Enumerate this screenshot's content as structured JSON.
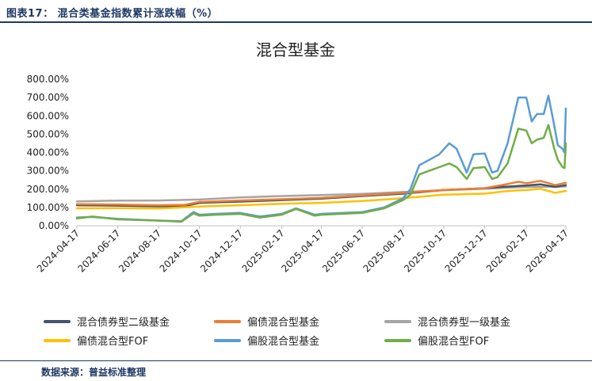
{
  "figure": {
    "caption": "图表17：  混合类基金指数累计涨跌幅（%）",
    "source": "数据来源：普益标准整理"
  },
  "chart_data": {
    "type": "line",
    "title": "混合型基金",
    "xlabel": "",
    "ylabel": "",
    "ylim": [
      0,
      800
    ],
    "yticks": [
      "800.00%",
      "700.00%",
      "600.00%",
      "500.00%",
      "400.00%",
      "300.00%",
      "200.00%",
      "100.00%",
      "0.00%"
    ],
    "xticks": [
      "2024-04-17",
      "2024-06-17",
      "2024-08-17",
      "2024-10-17",
      "2024-12-17",
      "2025-02-17",
      "2025-04-17",
      "2025-06-17",
      "2025-08-17",
      "2025-10-17",
      "2025-12-17",
      "2026-02-17",
      "2026-04-17"
    ],
    "legend_position": "bottom",
    "series": [
      {
        "name": "混合债券型二级基金",
        "color": "#44546a",
        "points": [
          [
            "2024-04-17",
            112
          ],
          [
            "2024-06-17",
            110
          ],
          [
            "2024-08-17",
            106
          ],
          [
            "2024-09-25",
            108
          ],
          [
            "2024-10-17",
            125
          ],
          [
            "2024-12-17",
            132
          ],
          [
            "2025-02-17",
            140
          ],
          [
            "2025-04-17",
            148
          ],
          [
            "2025-06-17",
            162
          ],
          [
            "2025-08-17",
            175
          ],
          [
            "2025-10-17",
            195
          ],
          [
            "2025-12-17",
            205
          ],
          [
            "2026-01-10",
            212
          ],
          [
            "2026-02-17",
            220
          ],
          [
            "2026-03-10",
            226
          ],
          [
            "2026-04-01",
            212
          ],
          [
            "2026-04-17",
            222
          ]
        ]
      },
      {
        "name": "偏债混合型基金",
        "color": "#ed7d31",
        "points": [
          [
            "2024-04-17",
            118
          ],
          [
            "2024-06-17",
            116
          ],
          [
            "2024-08-17",
            112
          ],
          [
            "2024-09-25",
            114
          ],
          [
            "2024-10-17",
            130
          ],
          [
            "2024-12-17",
            138
          ],
          [
            "2025-02-17",
            145
          ],
          [
            "2025-04-17",
            152
          ],
          [
            "2025-06-17",
            165
          ],
          [
            "2025-08-17",
            180
          ],
          [
            "2025-10-17",
            195
          ],
          [
            "2025-12-17",
            205
          ],
          [
            "2026-01-20",
            228
          ],
          [
            "2026-02-05",
            240
          ],
          [
            "2026-02-17",
            232
          ],
          [
            "2026-03-10",
            245
          ],
          [
            "2026-04-01",
            222
          ],
          [
            "2026-04-17",
            235
          ]
        ]
      },
      {
        "name": "混合债券型一级基金",
        "color": "#a5a5a5",
        "points": [
          [
            "2024-04-17",
            133
          ],
          [
            "2024-06-17",
            137
          ],
          [
            "2024-08-17",
            138
          ],
          [
            "2024-10-17",
            143
          ],
          [
            "2024-12-17",
            155
          ],
          [
            "2025-02-17",
            162
          ],
          [
            "2025-04-17",
            168
          ],
          [
            "2025-06-17",
            174
          ],
          [
            "2025-08-17",
            184
          ],
          [
            "2025-10-17",
            194
          ],
          [
            "2025-12-17",
            202
          ],
          [
            "2026-02-17",
            212
          ],
          [
            "2026-04-17",
            214
          ]
        ]
      },
      {
        "name": "偏债混合型FOF",
        "color": "#ffc000",
        "points": [
          [
            "2024-04-17",
            95
          ],
          [
            "2024-06-17",
            96
          ],
          [
            "2024-08-17",
            94
          ],
          [
            "2024-10-17",
            105
          ],
          [
            "2024-12-17",
            112
          ],
          [
            "2025-02-17",
            120
          ],
          [
            "2025-04-17",
            125
          ],
          [
            "2025-06-17",
            135
          ],
          [
            "2025-08-17",
            150
          ],
          [
            "2025-10-17",
            170
          ],
          [
            "2025-12-17",
            175
          ],
          [
            "2026-01-20",
            190
          ],
          [
            "2026-02-17",
            195
          ],
          [
            "2026-03-10",
            202
          ],
          [
            "2026-04-01",
            180
          ],
          [
            "2026-04-17",
            190
          ]
        ]
      },
      {
        "name": "偏股混合型基金",
        "color": "#5b9bd5",
        "points": [
          [
            "2024-04-17",
            45
          ],
          [
            "2024-05-10",
            48
          ],
          [
            "2024-06-17",
            38
          ],
          [
            "2024-08-17",
            28
          ],
          [
            "2024-09-20",
            25
          ],
          [
            "2024-10-08",
            75
          ],
          [
            "2024-10-17",
            60
          ],
          [
            "2024-11-10",
            65
          ],
          [
            "2024-12-17",
            70
          ],
          [
            "2025-01-15",
            50
          ],
          [
            "2025-02-17",
            65
          ],
          [
            "2025-03-10",
            95
          ],
          [
            "2025-04-07",
            60
          ],
          [
            "2025-04-17",
            65
          ],
          [
            "2025-06-17",
            75
          ],
          [
            "2025-07-20",
            100
          ],
          [
            "2025-08-17",
            150
          ],
          [
            "2025-08-28",
            200
          ],
          [
            "2025-09-10",
            330
          ],
          [
            "2025-09-25",
            360
          ],
          [
            "2025-10-10",
            390
          ],
          [
            "2025-10-25",
            450
          ],
          [
            "2025-11-05",
            420
          ],
          [
            "2025-11-20",
            290
          ],
          [
            "2025-11-30",
            390
          ],
          [
            "2025-12-17",
            395
          ],
          [
            "2025-12-28",
            290
          ],
          [
            "2026-01-05",
            300
          ],
          [
            "2026-01-20",
            450
          ],
          [
            "2026-02-05",
            700
          ],
          [
            "2026-02-17",
            700
          ],
          [
            "2026-02-25",
            570
          ],
          [
            "2026-03-05",
            610
          ],
          [
            "2026-03-15",
            610
          ],
          [
            "2026-03-22",
            710
          ],
          [
            "2026-03-30",
            560
          ],
          [
            "2026-04-05",
            440
          ],
          [
            "2026-04-12",
            420
          ],
          [
            "2026-04-15",
            400
          ],
          [
            "2026-04-17",
            640
          ]
        ]
      },
      {
        "name": "偏股混合型FOF",
        "color": "#70ad47",
        "points": [
          [
            "2024-04-17",
            40
          ],
          [
            "2024-05-10",
            50
          ],
          [
            "2024-06-17",
            35
          ],
          [
            "2024-08-17",
            28
          ],
          [
            "2024-09-20",
            22
          ],
          [
            "2024-10-08",
            68
          ],
          [
            "2024-10-17",
            55
          ],
          [
            "2024-11-10",
            60
          ],
          [
            "2024-12-17",
            65
          ],
          [
            "2025-01-15",
            45
          ],
          [
            "2025-02-17",
            60
          ],
          [
            "2025-03-10",
            92
          ],
          [
            "2025-04-07",
            55
          ],
          [
            "2025-04-17",
            60
          ],
          [
            "2025-06-17",
            70
          ],
          [
            "2025-07-20",
            95
          ],
          [
            "2025-08-17",
            140
          ],
          [
            "2025-08-28",
            170
          ],
          [
            "2025-09-10",
            280
          ],
          [
            "2025-09-25",
            300
          ],
          [
            "2025-10-10",
            320
          ],
          [
            "2025-10-25",
            340
          ],
          [
            "2025-11-05",
            320
          ],
          [
            "2025-11-20",
            255
          ],
          [
            "2025-11-30",
            315
          ],
          [
            "2025-12-17",
            320
          ],
          [
            "2025-12-28",
            255
          ],
          [
            "2026-01-05",
            265
          ],
          [
            "2026-01-20",
            340
          ],
          [
            "2026-02-05",
            530
          ],
          [
            "2026-02-17",
            520
          ],
          [
            "2026-02-25",
            450
          ],
          [
            "2026-03-05",
            470
          ],
          [
            "2026-03-15",
            480
          ],
          [
            "2026-03-22",
            550
          ],
          [
            "2026-03-30",
            430
          ],
          [
            "2026-04-05",
            360
          ],
          [
            "2026-04-12",
            320
          ],
          [
            "2026-04-15",
            315
          ],
          [
            "2026-04-17",
            450
          ]
        ]
      }
    ]
  }
}
